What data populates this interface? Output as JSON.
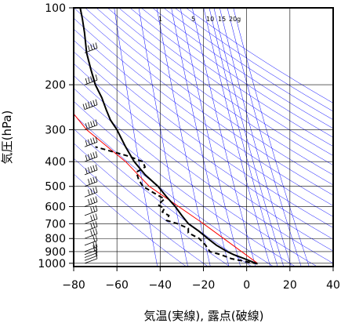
{
  "chart_data": {
    "type": "skew-t log-p sounding",
    "xlabel": "気温(実線), 露点(破線)",
    "ylabel": "気圧(hPa)",
    "xlim": [
      -80,
      40
    ],
    "ylim": [
      1030,
      100
    ],
    "y_scale": "log",
    "x_ticks": [
      "−80",
      "−60",
      "−40",
      "−20",
      "0",
      "20",
      "40"
    ],
    "x_tick_values": [
      -80,
      -60,
      -40,
      -20,
      0,
      20,
      40
    ],
    "y_ticks": [
      "100",
      "200",
      "300",
      "400",
      "500",
      "600",
      "700",
      "800",
      "900",
      "1000"
    ],
    "y_tick_values": [
      100,
      200,
      300,
      400,
      500,
      600,
      700,
      800,
      900,
      1000
    ],
    "grid": true,
    "mixing_ratio_labels": [
      "1",
      "5",
      "10",
      "15",
      "20g"
    ],
    "colors": {
      "temperature": "#000000",
      "dewpoint": "#000000",
      "parcel_path": "#ff0000",
      "guide_lines": "#0000ff",
      "grid": "#000000"
    },
    "temperature": {
      "p": [
        1004,
        990,
        960,
        925,
        900,
        850,
        800,
        750,
        700,
        650,
        600,
        550,
        500,
        450,
        400,
        350,
        300,
        275,
        250,
        225,
        200,
        175,
        150,
        125,
        110,
        100
      ],
      "t": [
        5,
        3,
        -1,
        -6,
        -9,
        -14,
        -18,
        -22,
        -27,
        -30,
        -33,
        -37,
        -41,
        -47,
        -52,
        -56,
        -60,
        -63,
        -65,
        -67,
        -70,
        -72,
        -74,
        -75,
        -76,
        -77
      ]
    },
    "dewpoint": {
      "p": [
        1004,
        990,
        960,
        925,
        900,
        850,
        800,
        760,
        730,
        700,
        680,
        650,
        630,
        610,
        590,
        560,
        530,
        500,
        470,
        440,
        420,
        400,
        380,
        350
      ],
      "td": [
        5,
        1,
        -7,
        -12,
        -17,
        -19,
        -22,
        -27,
        -27,
        -32,
        -37,
        -36,
        -39,
        -38,
        -41,
        -38,
        -43,
        -48,
        -50,
        -51,
        -47,
        -48,
        -55,
        -70
      ]
    },
    "parcel_path": {
      "p": [
        1000,
        700,
        500,
        400,
        300,
        260
      ],
      "t": [
        5,
        -20,
        -45,
        -56,
        -74,
        -80
      ]
    },
    "wind": {
      "p": [
        1000,
        975,
        950,
        925,
        900,
        850,
        800,
        750,
        700,
        650,
        600,
        550,
        500,
        450,
        400,
        350,
        300,
        250,
        200,
        150,
        100
      ],
      "speed_kt": [
        5,
        10,
        10,
        15,
        15,
        20,
        25,
        25,
        30,
        30,
        35,
        35,
        40,
        45,
        45,
        50,
        50,
        55,
        45,
        35,
        20
      ]
    }
  }
}
